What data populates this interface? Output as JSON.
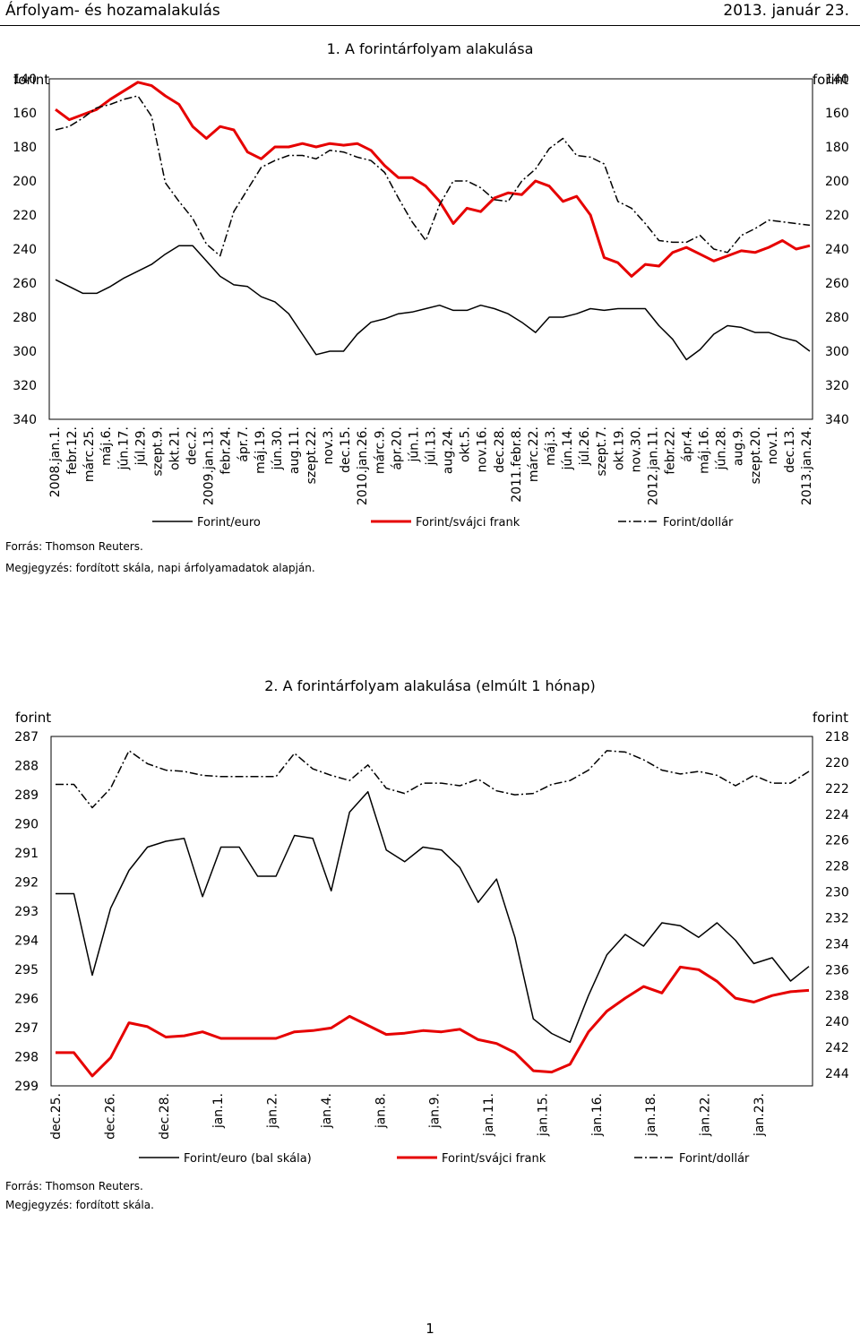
{
  "header": {
    "title": "Árfolyam- és hozamalakulás",
    "date": "2013. január 23."
  },
  "page_number": "1",
  "chart_data": [
    {
      "type": "line",
      "title": "1. A forintárfolyam alakulása",
      "ylabel_left": "forint",
      "ylabel_right": "forint",
      "y_reversed": true,
      "ylim": [
        140,
        340
      ],
      "yticks": [
        "140",
        "160",
        "180",
        "200",
        "220",
        "240",
        "260",
        "280",
        "300",
        "320",
        "340"
      ],
      "x_labels": [
        "2008.jan.1.",
        "febr.12.",
        "márc.25.",
        "máj.6.",
        "jún.17.",
        "júl.29.",
        "szept.9.",
        "okt.21.",
        "dec.2.",
        "2009.jan.13.",
        "febr.24.",
        "ápr.7.",
        "máj.19.",
        "jún.30.",
        "aug.11.",
        "szept.22.",
        "nov.3.",
        "dec.15.",
        "2010.jan.26.",
        "márc.9.",
        "ápr.20.",
        "jún.1.",
        "júl.13.",
        "aug.24.",
        "okt.5.",
        "nov.16.",
        "dec.28.",
        "2011.febr.8.",
        "márc.22.",
        "máj.3.",
        "jún.14.",
        "júl.26.",
        "szept.7.",
        "okt.19.",
        "nov.30.",
        "2012.jan.11.",
        "febr.22.",
        "ápr.4.",
        "máj.16.",
        "jún.28.",
        "aug.9.",
        "szept.20.",
        "nov.1.",
        "dec.13.",
        "2013.jan.24."
      ],
      "series": [
        {
          "name": "Forint/euro",
          "color": "#000000",
          "style": "solid",
          "values": [
            258,
            262,
            266,
            266,
            262,
            257,
            253,
            249,
            243,
            238,
            238,
            247,
            256,
            261,
            262,
            268,
            271,
            278,
            290,
            302,
            300,
            300,
            290,
            283,
            281,
            278,
            277,
            275,
            273,
            276,
            276,
            273,
            275,
            278,
            283,
            289,
            280,
            280,
            278,
            275,
            276,
            275,
            275,
            275,
            285,
            293,
            305,
            299,
            290,
            285,
            286,
            289,
            289,
            292,
            294,
            300
          ]
        },
        {
          "name": "Forint/svájci frank",
          "color": "#e60000",
          "style": "solid",
          "width": 3,
          "values": [
            158,
            164,
            161,
            158,
            152,
            147,
            142,
            144,
            150,
            155,
            168,
            175,
            168,
            170,
            183,
            187,
            180,
            180,
            178,
            180,
            178,
            179,
            178,
            182,
            191,
            198,
            198,
            203,
            212,
            225,
            216,
            218,
            210,
            207,
            208,
            200,
            203,
            212,
            209,
            220,
            245,
            248,
            256,
            249,
            250,
            242,
            239,
            243,
            247,
            244,
            241,
            242,
            239,
            235,
            240,
            238
          ]
        },
        {
          "name": "Forint/dollár",
          "color": "#000000",
          "style": "dashdot",
          "values": [
            170,
            168,
            163,
            157,
            155,
            152,
            150,
            162,
            201,
            212,
            222,
            237,
            244,
            218,
            205,
            192,
            188,
            185,
            185,
            187,
            182,
            183,
            186,
            188,
            195,
            210,
            224,
            235,
            214,
            200,
            200,
            204,
            211,
            212,
            200,
            193,
            181,
            175,
            185,
            186,
            190,
            212,
            216,
            225,
            235,
            236,
            236,
            232,
            240,
            242,
            232,
            228,
            223,
            224,
            225,
            226
          ]
        }
      ],
      "legend": [
        "Forint/euro",
        "Forint/svájci frank",
        "Forint/dollár"
      ],
      "source": "Forrás: Thomson Reuters.",
      "note": "Megjegyzés: fordított skála, napi árfolyamadatok alapján."
    },
    {
      "type": "line",
      "title": "2. A forintárfolyam alakulása (elmúlt 1 hónap)",
      "ylabel_left": "forint",
      "ylabel_right": "forint",
      "y_reversed": true,
      "ylim_left": [
        287,
        299
      ],
      "ylim_right": [
        218,
        244
      ],
      "yticks_left": [
        "287",
        "288",
        "289",
        "290",
        "291",
        "292",
        "293",
        "294",
        "295",
        "296",
        "297",
        "298",
        "299"
      ],
      "yticks_right": [
        "218",
        "220",
        "222",
        "224",
        "226",
        "228",
        "230",
        "232",
        "234",
        "236",
        "238",
        "240",
        "242",
        "244"
      ],
      "x_labels": [
        "dec.25.",
        "dec.26.",
        "dec.28.",
        "jan.1.",
        "jan.2.",
        "jan.4.",
        "jan.8.",
        "jan.9.",
        "jan.11.",
        "jan.15.",
        "jan.16.",
        "jan.18.",
        "jan.22.",
        "jan.23."
      ],
      "series": [
        {
          "name": "Forint/euro (bal skála)",
          "color": "#000000",
          "style": "solid",
          "axis": "left",
          "values": [
            292.4,
            292.4,
            295.2,
            292.9,
            291.6,
            290.8,
            290.6,
            290.5,
            292.5,
            290.8,
            290.8,
            291.8,
            291.8,
            290.4,
            290.5,
            292.3,
            289.6,
            288.9,
            290.9,
            291.3,
            290.8,
            290.9,
            291.5,
            292.7,
            291.9,
            293.9,
            296.7,
            297.2,
            297.5,
            295.9,
            294.5,
            293.8,
            294.2,
            293.4,
            293.5,
            293.9,
            293.4,
            294.0,
            294.8,
            294.6,
            295.4,
            294.9
          ]
        },
        {
          "name": "Forint/svájci frank",
          "color": "#e60000",
          "style": "solid",
          "width": 3,
          "axis": "right",
          "values": [
            242.4,
            242.4,
            244.2,
            242.8,
            240.1,
            240.4,
            241.2,
            241.1,
            240.8,
            241.3,
            241.3,
            241.3,
            241.3,
            240.8,
            240.7,
            240.5,
            239.6,
            240.3,
            241.0,
            240.9,
            240.7,
            240.8,
            240.6,
            241.4,
            241.7,
            242.4,
            243.8,
            243.9,
            243.3,
            240.8,
            239.2,
            238.2,
            237.3,
            237.8,
            235.8,
            236.0,
            236.9,
            238.2,
            238.5,
            238.0,
            237.7,
            237.6
          ]
        },
        {
          "name": "Forint/dollár",
          "color": "#000000",
          "style": "dashdot",
          "axis": "right",
          "values": [
            221.7,
            221.7,
            223.5,
            222.0,
            219.1,
            220.1,
            220.6,
            220.7,
            221.0,
            221.1,
            221.1,
            221.1,
            221.1,
            219.3,
            220.5,
            221.0,
            221.4,
            220.2,
            222.0,
            222.4,
            221.6,
            221.6,
            221.8,
            221.3,
            222.2,
            222.5,
            222.4,
            221.7,
            221.4,
            220.6,
            219.1,
            219.2,
            219.8,
            220.6,
            220.9,
            220.7,
            221.0,
            221.8,
            221.0,
            221.6,
            221.6,
            220.7
          ]
        }
      ],
      "legend": [
        "Forint/euro (bal skála)",
        "Forint/svájci frank",
        "Forint/dollár"
      ],
      "source": "Forrás: Thomson Reuters.",
      "note": "Megjegyzés: fordított skála."
    }
  ]
}
